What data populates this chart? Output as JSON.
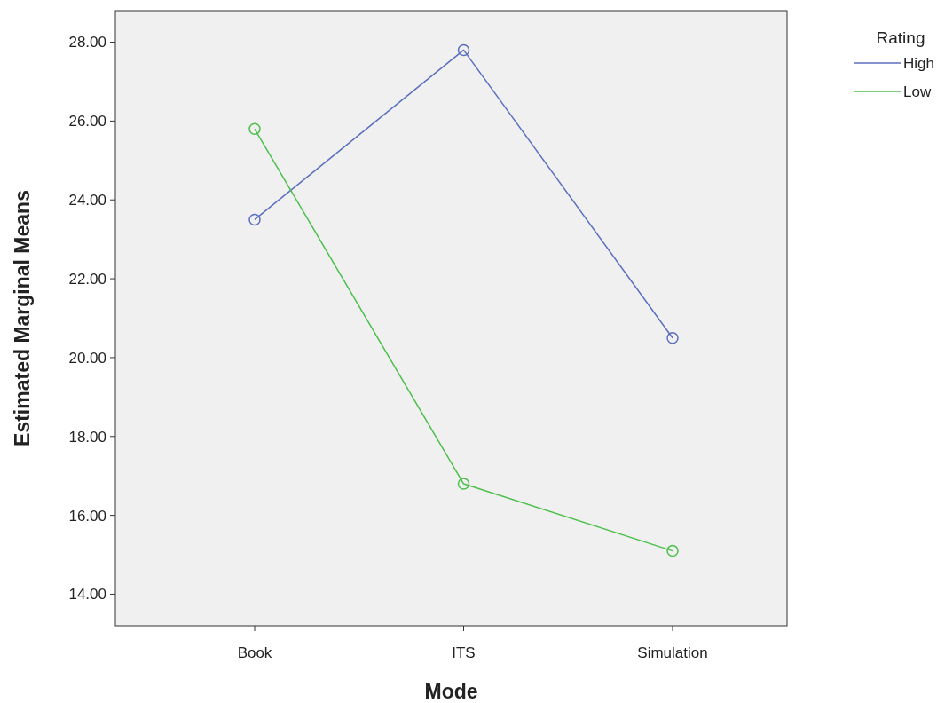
{
  "chart_data": {
    "type": "line",
    "xlabel": "Mode",
    "ylabel": "Estimated Marginal Means",
    "legend_title": "Rating",
    "legend": "right",
    "marker": "circle",
    "line_style": "solid",
    "grid": false,
    "categories": [
      "Book",
      "ITS",
      "Simulation"
    ],
    "series": [
      {
        "name": "High",
        "color": "#5b6fbf",
        "values": [
          23.5,
          27.8,
          20.5
        ]
      },
      {
        "name": "Low",
        "color": "#4cbf4c",
        "values": [
          25.8,
          16.8,
          15.1
        ]
      }
    ],
    "ylim": [
      13.2,
      28.8
    ],
    "yticks": [
      {
        "value": 14,
        "label": "14.00"
      },
      {
        "value": 16,
        "label": "16.00"
      },
      {
        "value": 18,
        "label": "18.00"
      },
      {
        "value": 20,
        "label": "20.00"
      },
      {
        "value": 22,
        "label": "22.00"
      },
      {
        "value": 24,
        "label": "24.00"
      },
      {
        "value": 26,
        "label": "26.00"
      },
      {
        "value": 28,
        "label": "28.00"
      }
    ]
  }
}
